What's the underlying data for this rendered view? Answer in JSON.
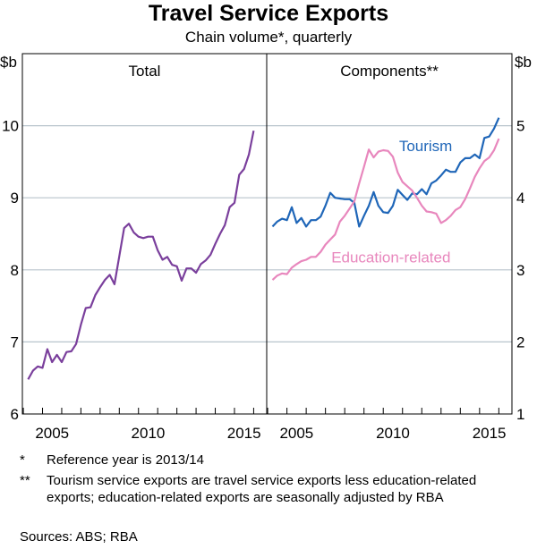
{
  "title": "Travel Service Exports",
  "subtitle": "Chain volume*, quarterly",
  "footnotes": [
    {
      "mark": "*",
      "text": "Reference year is 2013/14"
    },
    {
      "mark": "**",
      "text": "Tourism service exports are travel service exports less education-related exports; education-related exports are seasonally adjusted by RBA"
    }
  ],
  "sources": "Sources:  ABS; RBA",
  "colors": {
    "total": "#7a3f9c",
    "tourism": "#1f66b8",
    "education": "#e887bd",
    "grid": "#b8c4cc"
  },
  "chart_data": [
    {
      "type": "line",
      "title": "Total",
      "ylabel": "$b",
      "ylim": [
        6,
        11
      ],
      "yticks": [
        6,
        7,
        8,
        9,
        10
      ],
      "xlim": [
        2003.95,
        2016.68
      ],
      "xticks": [
        "2005",
        "2010",
        "2015"
      ],
      "x_start": 2004.25,
      "x_step": 0.25,
      "grid": true,
      "series": [
        {
          "name": "Total",
          "color_key": "total",
          "values": [
            6.48,
            6.6,
            6.66,
            6.64,
            6.9,
            6.72,
            6.82,
            6.72,
            6.86,
            6.87,
            6.97,
            7.24,
            7.47,
            7.48,
            7.65,
            7.76,
            7.86,
            7.93,
            7.8,
            8.19,
            8.58,
            8.64,
            8.52,
            8.46,
            8.44,
            8.46,
            8.46,
            8.27,
            8.14,
            8.18,
            8.07,
            8.05,
            7.85,
            8.02,
            8.02,
            7.96,
            8.08,
            8.13,
            8.21,
            8.36,
            8.5,
            8.62,
            8.87,
            8.93,
            9.32,
            9.4,
            9.6,
            9.93
          ]
        }
      ]
    },
    {
      "type": "line",
      "title": "Components**",
      "ylabel": "$b",
      "ylim": [
        1,
        6
      ],
      "yticks": [
        1,
        2,
        3,
        4,
        5
      ],
      "xlim": [
        2003.95,
        2016.68
      ],
      "xticks": [
        "2005",
        "2010",
        "2015"
      ],
      "x_start": 2004.25,
      "x_step": 0.25,
      "grid": true,
      "series": [
        {
          "name": "Tourism",
          "color_key": "tourism",
          "label_at": [
            2012.2,
            4.65
          ],
          "values": [
            3.6,
            3.67,
            3.71,
            3.69,
            3.87,
            3.65,
            3.72,
            3.6,
            3.69,
            3.69,
            3.74,
            3.89,
            4.07,
            4.0,
            3.99,
            3.98,
            3.98,
            3.93,
            3.6,
            3.75,
            3.89,
            4.08,
            3.89,
            3.8,
            3.79,
            3.89,
            4.11,
            4.04,
            3.97,
            4.06,
            4.05,
            4.12,
            4.05,
            4.2,
            4.24,
            4.31,
            4.39,
            4.36,
            4.36,
            4.49,
            4.55,
            4.55,
            4.6,
            4.55,
            4.83,
            4.85,
            4.96,
            5.11
          ]
        },
        {
          "name": "Education-related",
          "color_key": "education",
          "label_at": [
            2010.4,
            3.1
          ],
          "values": [
            2.86,
            2.92,
            2.95,
            2.94,
            3.03,
            3.08,
            3.12,
            3.14,
            3.18,
            3.18,
            3.25,
            3.35,
            3.42,
            3.49,
            3.67,
            3.75,
            3.85,
            3.95,
            4.2,
            4.43,
            4.67,
            4.56,
            4.64,
            4.66,
            4.65,
            4.57,
            4.35,
            4.22,
            4.16,
            4.1,
            4.0,
            3.89,
            3.81,
            3.8,
            3.78,
            3.65,
            3.69,
            3.75,
            3.83,
            3.87,
            3.98,
            4.13,
            4.29,
            4.41,
            4.51,
            4.56,
            4.66,
            4.82
          ]
        }
      ]
    }
  ]
}
